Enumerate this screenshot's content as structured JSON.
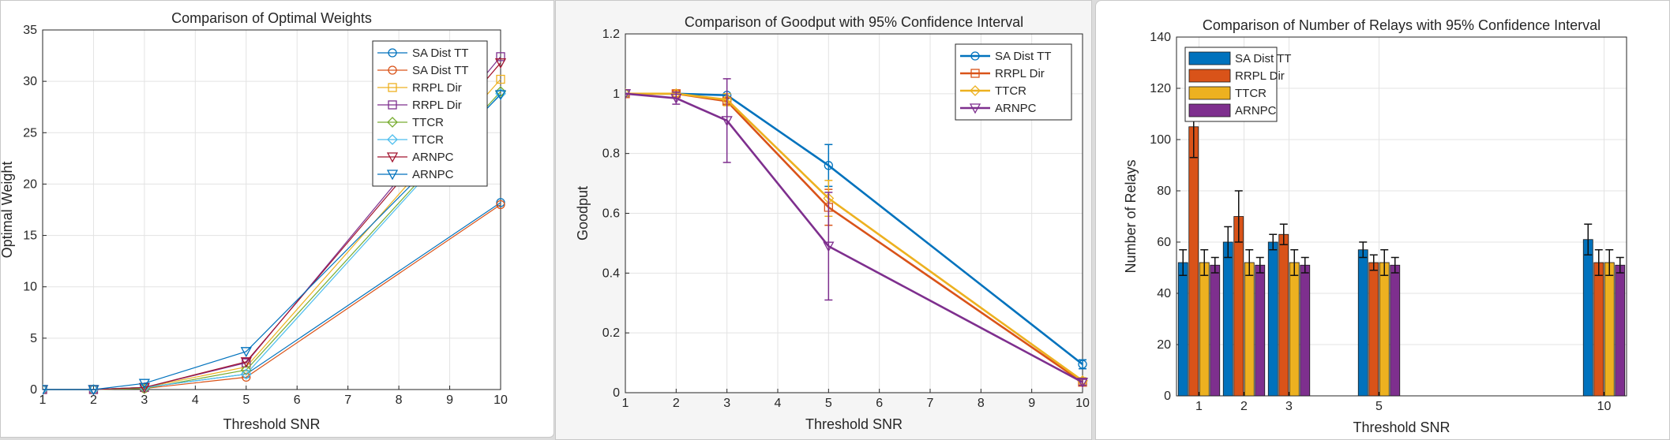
{
  "chart_data": [
    {
      "type": "line",
      "title": "Comparison of Optimal Weights",
      "xlabel": "Threshold SNR",
      "ylabel": "Optimal Weight",
      "xlim": [
        1,
        10
      ],
      "ylim": [
        0,
        35
      ],
      "xticks": [
        1,
        2,
        3,
        4,
        5,
        6,
        7,
        8,
        9,
        10
      ],
      "yticks": [
        0,
        5,
        10,
        15,
        20,
        25,
        30,
        35
      ],
      "grid": true,
      "legend_position": "top-right",
      "x": [
        1,
        2,
        3,
        5,
        10
      ],
      "series": [
        {
          "name": "SA Dist TT",
          "color": "#0072BD",
          "marker": "circle",
          "values": [
            0,
            0,
            0.2,
            1.5,
            18.2
          ]
        },
        {
          "name": "SA Dist TT",
          "color": "#D95319",
          "marker": "circle",
          "values": [
            0,
            0,
            0.1,
            1.2,
            18.0
          ]
        },
        {
          "name": "RRPL Dir",
          "color": "#EDB120",
          "marker": "square",
          "values": [
            0,
            0,
            0.2,
            2.2,
            30.2
          ]
        },
        {
          "name": "RRPL Dir",
          "color": "#7E2F8E",
          "marker": "square",
          "values": [
            0,
            0,
            0.2,
            2.6,
            32.4
          ]
        },
        {
          "name": "TTCR",
          "color": "#77AC30",
          "marker": "diamond",
          "values": [
            0,
            0,
            0.1,
            1.9,
            29.0
          ]
        },
        {
          "name": "TTCR",
          "color": "#4DBEEE",
          "marker": "diamond",
          "values": [
            0,
            0,
            0.2,
            1.5,
            28.8
          ]
        },
        {
          "name": "ARNPC",
          "color": "#A2142F",
          "marker": "triangle-down",
          "values": [
            0,
            0,
            0.2,
            2.7,
            31.8
          ]
        },
        {
          "name": "ARNPC",
          "color": "#0072BD",
          "marker": "triangle-down",
          "values": [
            0,
            0,
            0.6,
            3.7,
            28.7
          ]
        }
      ]
    },
    {
      "type": "line",
      "title": "Comparison of Goodput with 95% Confidence Interval",
      "xlabel": "Threshold SNR",
      "ylabel": "Goodput",
      "xlim": [
        1,
        10
      ],
      "ylim": [
        0,
        1.2
      ],
      "xticks": [
        1,
        2,
        3,
        4,
        5,
        6,
        7,
        8,
        9,
        10
      ],
      "yticks": [
        0,
        0.2,
        0.4,
        0.6,
        0.8,
        1,
        1.2
      ],
      "grid": true,
      "legend_position": "top-right",
      "x": [
        1,
        2,
        3,
        5,
        10
      ],
      "series": [
        {
          "name": "SA Dist TT",
          "color": "#0072BD",
          "marker": "circle",
          "values": [
            1.0,
            1.0,
            0.995,
            0.76,
            0.095
          ],
          "errors": [
            0,
            0,
            0,
            0.07,
            0.015
          ]
        },
        {
          "name": "RRPL Dir",
          "color": "#D95319",
          "marker": "square",
          "values": [
            1.0,
            1.0,
            0.975,
            0.62,
            0.035
          ],
          "errors": [
            0,
            0.01,
            0.01,
            0.06,
            0.01
          ]
        },
        {
          "name": "TTCR",
          "color": "#EDB120",
          "marker": "diamond",
          "values": [
            1.0,
            1.0,
            0.98,
            0.65,
            0.04
          ],
          "errors": [
            0,
            0,
            0.02,
            0.06,
            0.01
          ]
        },
        {
          "name": "ARNPC",
          "color": "#7E2F8E",
          "marker": "triangle-down",
          "values": [
            1.0,
            0.985,
            0.91,
            0.49,
            0.035
          ],
          "errors": [
            0,
            0.02,
            0.14,
            0.18,
            0.01
          ]
        }
      ]
    },
    {
      "type": "bar",
      "title": "Comparison of Number of Relays with 95% Confidence Interval",
      "xlabel": "Threshold SNR",
      "ylabel": "Number of Relays",
      "xlim": [
        0.5,
        10.5
      ],
      "ylim": [
        0,
        140
      ],
      "xticks": [
        1,
        2,
        3,
        5,
        10
      ],
      "yticks": [
        0,
        20,
        40,
        60,
        80,
        100,
        120,
        140
      ],
      "grid": true,
      "legend_position": "top-left",
      "x": [
        1,
        2,
        3,
        5,
        10
      ],
      "series": [
        {
          "name": "SA Dist TT",
          "color": "#0072BD",
          "values": [
            52,
            60,
            60,
            57,
            61
          ],
          "errors": [
            5,
            6,
            3,
            3,
            6
          ]
        },
        {
          "name": "RRPL Dir",
          "color": "#D95319",
          "values": [
            105,
            70,
            63,
            52,
            52
          ],
          "errors": [
            12,
            10,
            4,
            3,
            5
          ]
        },
        {
          "name": "TTCR",
          "color": "#EDB120",
          "values": [
            52,
            52,
            52,
            52,
            52
          ],
          "errors": [
            5,
            5,
            5,
            5,
            5
          ]
        },
        {
          "name": "ARNPC",
          "color": "#7E2F8E",
          "values": [
            51,
            51,
            51,
            51,
            51
          ],
          "errors": [
            3,
            3,
            3,
            3,
            3
          ]
        }
      ]
    }
  ]
}
